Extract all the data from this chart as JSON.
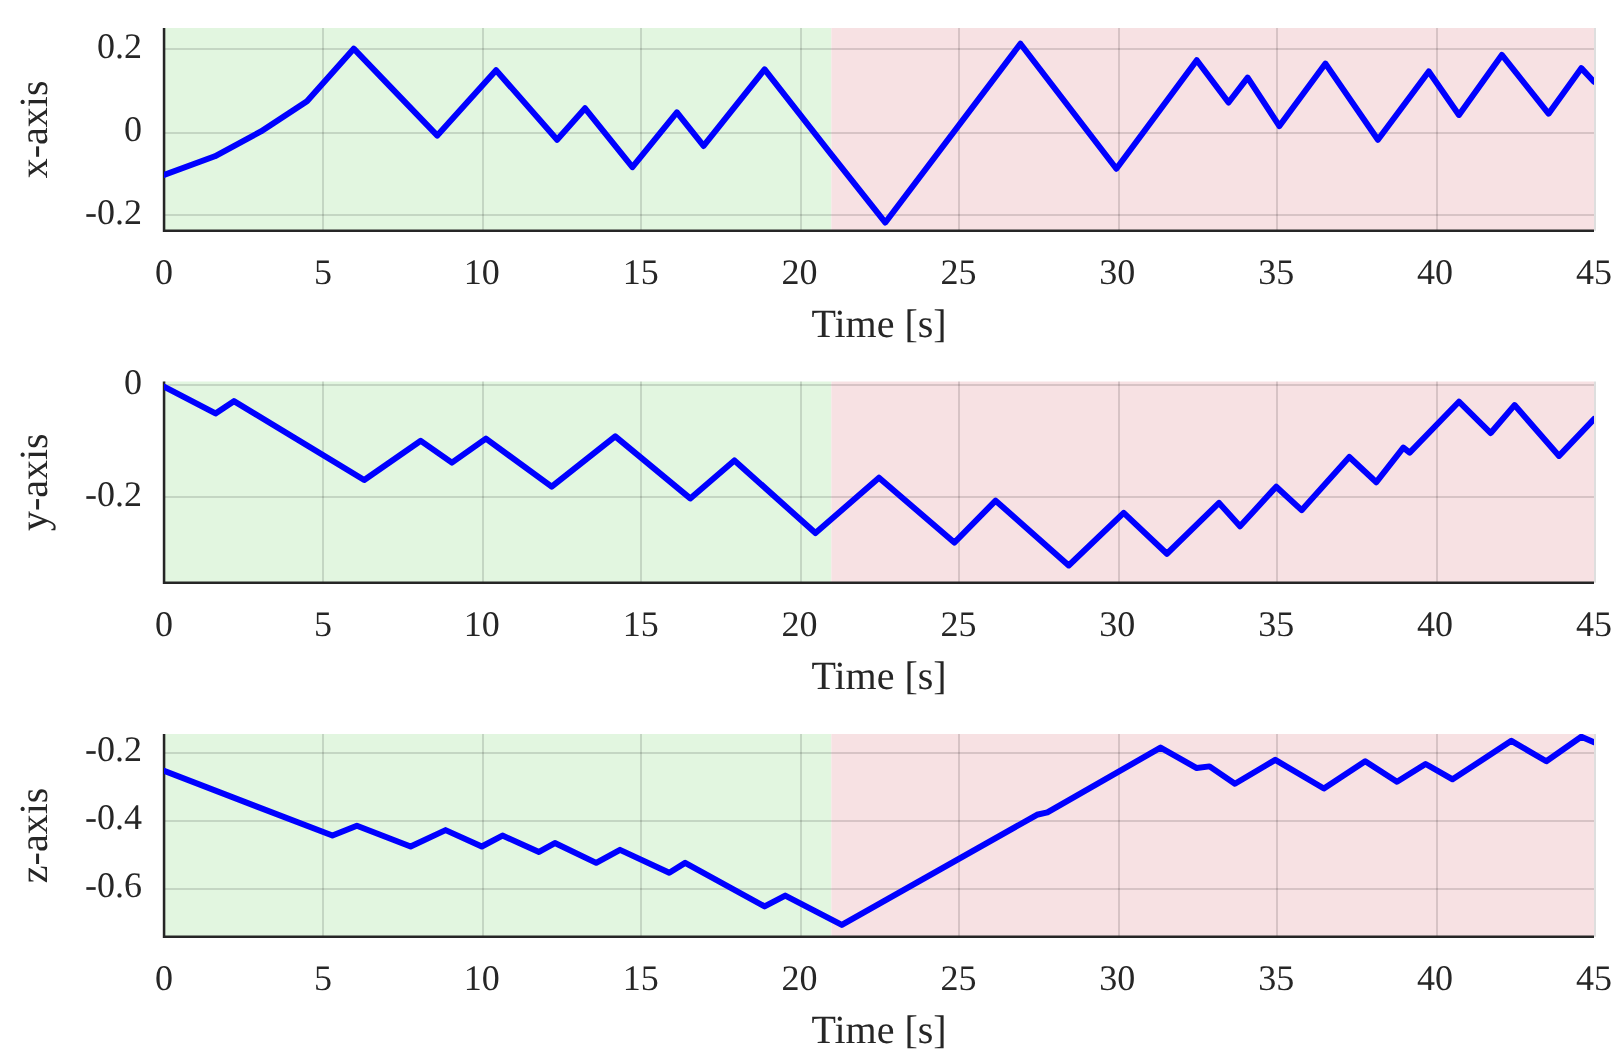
{
  "chart_data": [
    {
      "type": "line",
      "xlabel": "Time [s]",
      "ylabel": "x-axis",
      "xlim": [
        0,
        45
      ],
      "xticks": [
        0,
        5,
        10,
        15,
        20,
        25,
        30,
        35,
        40,
        45
      ],
      "ylim": [
        -0.24,
        0.25
      ],
      "yticks": [
        -0.2,
        0,
        0.2
      ],
      "grid": true,
      "legend": false,
      "line_style": "solid",
      "bands": [
        {
          "axis": "x",
          "from": 0,
          "to": 21,
          "color": "#e2f6e0"
        },
        {
          "axis": "x",
          "from": 21,
          "to": 45,
          "color": "#f7e1e3"
        }
      ],
      "series": [
        {
          "color": "#0000ff",
          "x": [
            0,
            1.6,
            3.05,
            4.5,
            5.97,
            8.6,
            10.45,
            12.37,
            13.25,
            14.74,
            16.14,
            16.98,
            18.9,
            20.94,
            22.7,
            26.95,
            29.97,
            32.5,
            33.5,
            34.1,
            35.1,
            36.55,
            38.2,
            39.8,
            40.75,
            42.1,
            43.57,
            44.6,
            45
          ],
          "values": [
            -0.105,
            -0.06,
            0,
            0.073,
            0.2,
            -0.01,
            0.148,
            -0.02,
            0.056,
            -0.086,
            0.046,
            -0.035,
            0.15,
            -0.05,
            -0.22,
            0.212,
            -0.09,
            0.172,
            0.07,
            0.13,
            0.013,
            0.164,
            -0.02,
            0.145,
            0.04,
            0.185,
            0.043,
            0.153,
            0.12
          ]
        }
      ]
    },
    {
      "type": "line",
      "xlabel": "Time [s]",
      "ylabel": "y-axis",
      "xlim": [
        0,
        45
      ],
      "xticks": [
        0,
        5,
        10,
        15,
        20,
        25,
        30,
        35,
        40,
        45
      ],
      "ylim": [
        -0.355,
        0.005
      ],
      "yticks": [
        -0.2,
        0
      ],
      "grid": true,
      "legend": false,
      "line_style": "solid",
      "bands": [
        {
          "axis": "x",
          "from": 0,
          "to": 21,
          "color": "#e2f6e0"
        },
        {
          "axis": "x",
          "from": 21,
          "to": 45,
          "color": "#f7e1e3"
        }
      ],
      "series": [
        {
          "color": "#0000ff",
          "x": [
            0,
            1.62,
            2.2,
            6.3,
            8.08,
            9.06,
            10.13,
            12.2,
            14.2,
            16.56,
            17.95,
            20.5,
            22.5,
            24.87,
            26.17,
            28.47,
            30.2,
            31.56,
            33.2,
            33.86,
            35,
            35.8,
            37.3,
            38.15,
            39,
            39.2,
            40.75,
            41.75,
            42.5,
            43.9,
            45
          ],
          "values": [
            -0.004,
            -0.052,
            -0.03,
            -0.171,
            -0.101,
            -0.14,
            -0.097,
            -0.183,
            -0.093,
            -0.204,
            -0.136,
            -0.266,
            -0.167,
            -0.283,
            -0.208,
            -0.324,
            -0.23,
            -0.303,
            -0.212,
            -0.254,
            -0.183,
            -0.225,
            -0.13,
            -0.175,
            -0.113,
            -0.122,
            -0.031,
            -0.087,
            -0.037,
            -0.128,
            -0.062
          ]
        }
      ]
    },
    {
      "type": "line",
      "xlabel": "Time [s]",
      "ylabel": "z-axis",
      "xlim": [
        0,
        45
      ],
      "xticks": [
        0,
        5,
        10,
        15,
        20,
        25,
        30,
        35,
        40,
        45
      ],
      "ylim": [
        -0.745,
        -0.15
      ],
      "yticks": [
        -0.6,
        -0.4,
        -0.2
      ],
      "grid": true,
      "legend": false,
      "line_style": "solid",
      "bands": [
        {
          "axis": "x",
          "from": 0,
          "to": 21,
          "color": "#e2f6e0"
        },
        {
          "axis": "x",
          "from": 21,
          "to": 45,
          "color": "#f7e1e3"
        }
      ],
      "series": [
        {
          "color": "#0000ff",
          "x": [
            0,
            5.3,
            6.07,
            7.76,
            8.86,
            10,
            10.65,
            11.8,
            12.3,
            13.6,
            14.35,
            15.9,
            16.4,
            18.9,
            19.55,
            21.33,
            27.47,
            27.8,
            31.36,
            32.5,
            32.9,
            33.7,
            34.97,
            36.5,
            37.8,
            38.8,
            39.7,
            40.55,
            42.4,
            43.5,
            44.6,
            45
          ],
          "values": [
            -0.258,
            -0.448,
            -0.419,
            -0.48,
            -0.432,
            -0.48,
            -0.448,
            -0.496,
            -0.47,
            -0.528,
            -0.49,
            -0.557,
            -0.528,
            -0.656,
            -0.624,
            -0.71,
            -0.387,
            -0.38,
            -0.19,
            -0.25,
            -0.245,
            -0.296,
            -0.226,
            -0.31,
            -0.23,
            -0.29,
            -0.238,
            -0.283,
            -0.17,
            -0.23,
            -0.158,
            -0.174
          ]
        }
      ]
    }
  ]
}
